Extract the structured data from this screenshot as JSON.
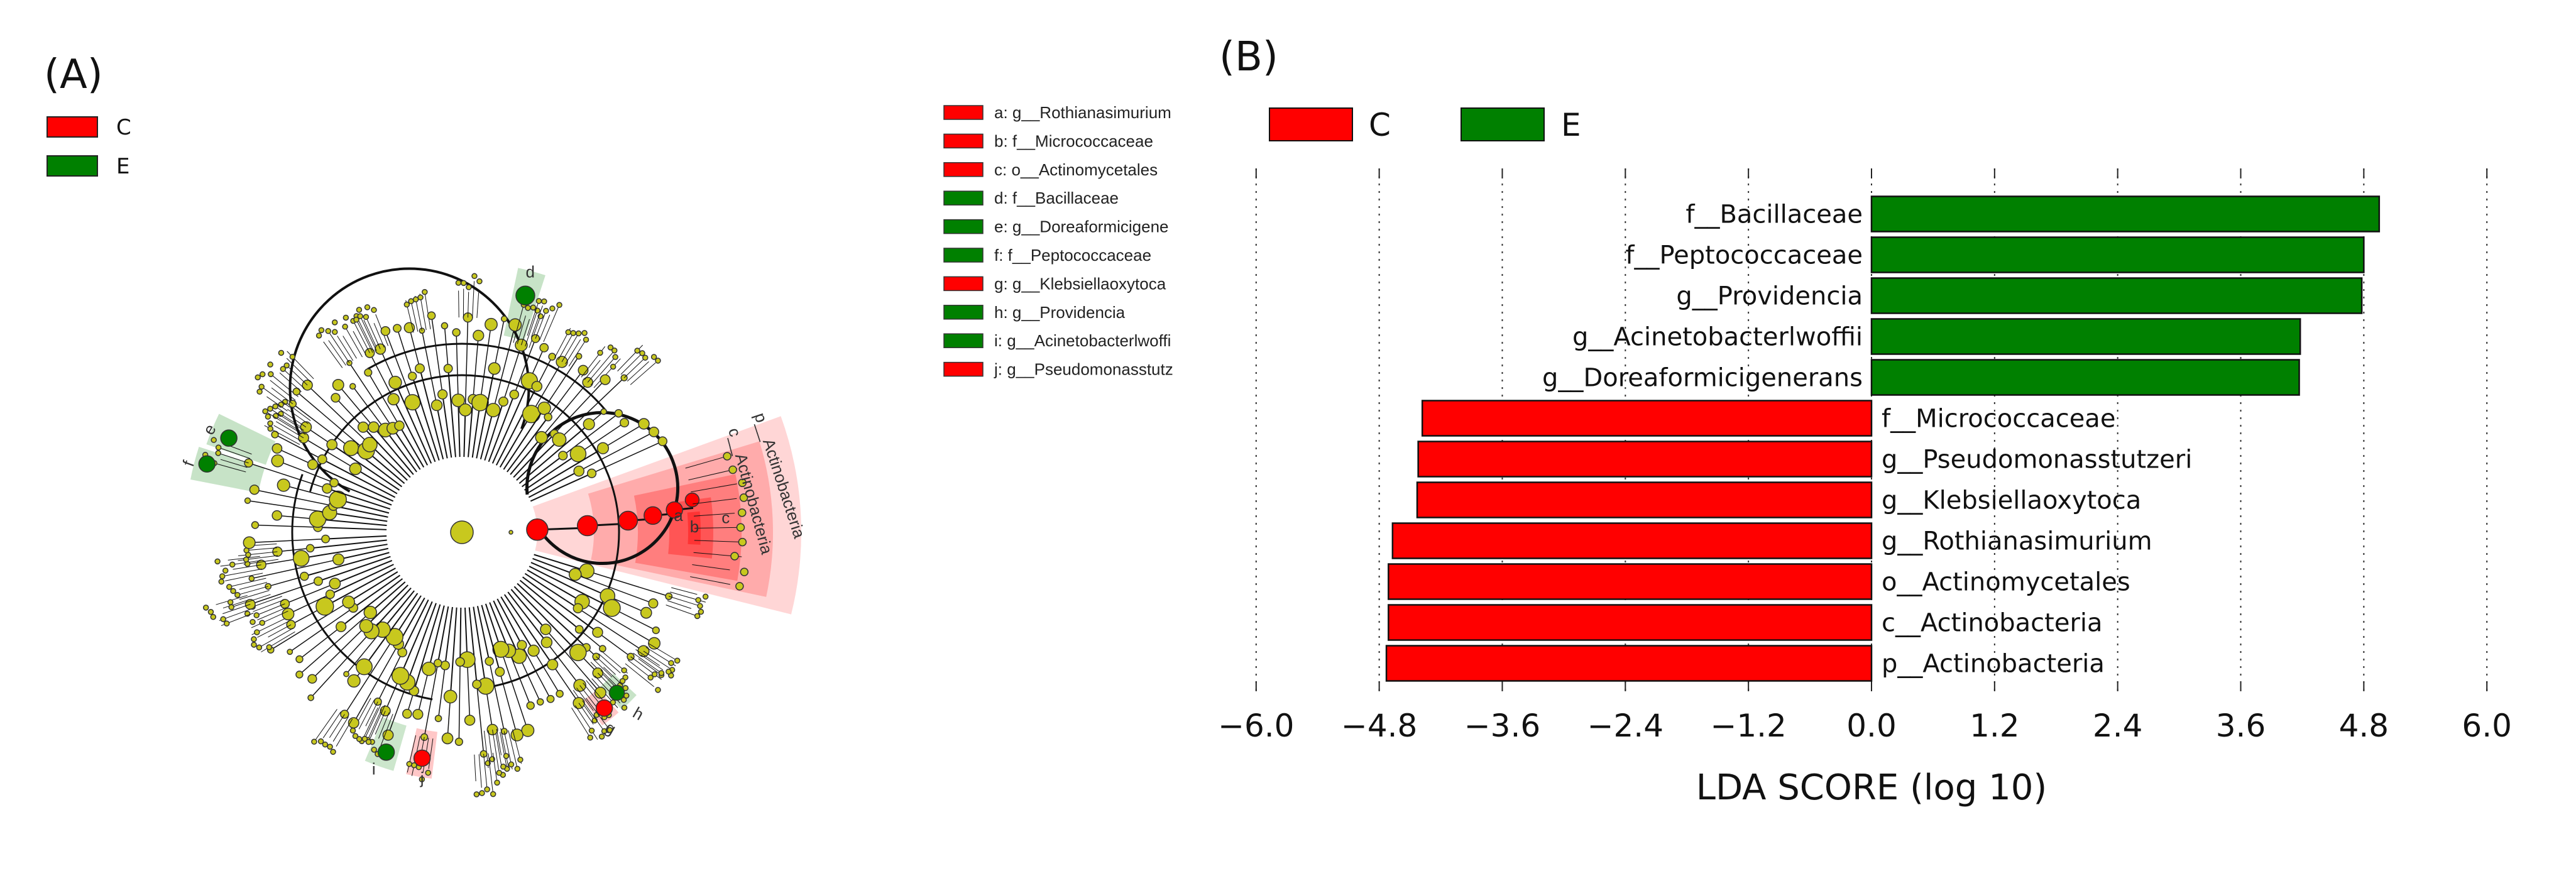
{
  "panels": {
    "a_label": "(A)",
    "b_label": "(B)"
  },
  "classes": [
    {
      "name": "C",
      "color": "#ff0000"
    },
    {
      "name": "E",
      "color": "#008000"
    }
  ],
  "node_color": "#c8c81e",
  "cladogram": {
    "legend": [
      {
        "name": "C"
      },
      {
        "name": "E"
      }
    ],
    "key": [
      {
        "text": "a: g__Rothianasimurium",
        "class": "C"
      },
      {
        "text": "b: f__Micrococcaceae",
        "class": "C"
      },
      {
        "text": "c: o__Actinomycetales",
        "class": "C"
      },
      {
        "text": "d: f__Bacillaceae",
        "class": "E"
      },
      {
        "text": "e: g__Doreaformicigene",
        "class": "E"
      },
      {
        "text": "f: f__Peptococcaceae",
        "class": "E"
      },
      {
        "text": "g: g__Klebsiellaoxytoca",
        "class": "C"
      },
      {
        "text": "h: g__Providencia",
        "class": "E"
      },
      {
        "text": "i: g__Acinetobacterlwoffi",
        "class": "E"
      },
      {
        "text": "j: g__Pseudomonasstutz",
        "class": "C"
      }
    ],
    "clade_labels": {
      "phylum": "p__Actinobacteria",
      "class": "c__Actinobacteria",
      "c": "c",
      "b": "b",
      "a": "a",
      "d": "d",
      "e": "e",
      "f": "f",
      "g": "g",
      "h": "h",
      "i": "i",
      "j": "j"
    }
  },
  "chart_data": {
    "type": "bar",
    "orientation": "horizontal",
    "xlabel": "LDA SCORE (log 10)",
    "xlim": [
      -6.0,
      6.0
    ],
    "xticks": [
      "−6.0",
      "−4.8",
      "−3.6",
      "−2.4",
      "−1.2",
      "0.0",
      "1.2",
      "2.4",
      "3.6",
      "4.8",
      "6.0"
    ],
    "xtick_values": [
      -6.0,
      -4.8,
      -3.6,
      -2.4,
      -1.2,
      0.0,
      1.2,
      2.4,
      3.6,
      4.8,
      6.0
    ],
    "grid": "vertical dotted",
    "legend_position": "top-left",
    "legend": [
      {
        "name": "C",
        "color": "#ff0000"
      },
      {
        "name": "E",
        "color": "#008000"
      }
    ],
    "bars": [
      {
        "label": "f__Bacillaceae",
        "value": 4.95,
        "class": "E"
      },
      {
        "label": "f__Peptococcaceae",
        "value": 4.8,
        "class": "E"
      },
      {
        "label": "g__Providencia",
        "value": 4.78,
        "class": "E"
      },
      {
        "label": "g__Acinetobacterlwoffii",
        "value": 4.18,
        "class": "E"
      },
      {
        "label": "g__Doreaformicigenerans",
        "value": 4.17,
        "class": "E"
      },
      {
        "label": "f__Micrococcaceae",
        "value": -4.38,
        "class": "C"
      },
      {
        "label": "g__Pseudomonasstutzeri",
        "value": -4.42,
        "class": "C"
      },
      {
        "label": "g__Klebsiellaoxytoca",
        "value": -4.43,
        "class": "C"
      },
      {
        "label": "g__Rothianasimurium",
        "value": -4.67,
        "class": "C"
      },
      {
        "label": "o__Actinomycetales",
        "value": -4.71,
        "class": "C"
      },
      {
        "label": "c__Actinobacteria",
        "value": -4.71,
        "class": "C"
      },
      {
        "label": "p__Actinobacteria",
        "value": -4.73,
        "class": "C"
      }
    ]
  }
}
